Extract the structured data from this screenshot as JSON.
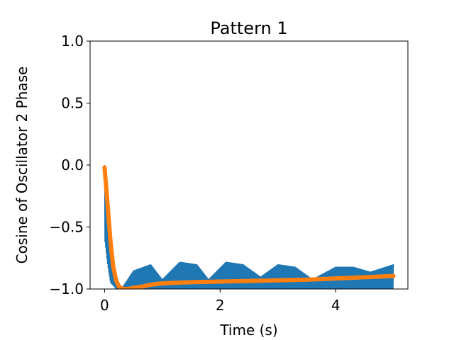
{
  "chart_data": {
    "type": "line",
    "title": "Pattern 1",
    "xlabel": "Time (s)",
    "ylabel": "Cosine of Oscillator 2 Phase",
    "xlim": [
      -0.25,
      5.25
    ],
    "ylim": [
      -1.0,
      1.0
    ],
    "xticks": [
      0,
      2,
      4
    ],
    "xtick_labels": [
      "0",
      "2",
      "4"
    ],
    "yticks": [
      -1.0,
      -0.5,
      0.0,
      0.5,
      1.0
    ],
    "ytick_labels": [
      "−1.0",
      "−0.5",
      "0.0",
      "0.5",
      "1.0"
    ],
    "grid": false,
    "legend": "none",
    "series": [
      {
        "color": "#1f77b4",
        "style": "dense oscillation",
        "envelope": {
          "x": [
            0.0,
            0.05,
            0.1,
            0.2,
            0.3,
            0.5,
            0.8,
            1.0,
            1.3,
            1.6,
            1.8,
            2.1,
            2.4,
            2.7,
            3.0,
            3.3,
            3.6,
            4.0,
            4.3,
            4.6,
            5.0
          ],
          "upper": [
            0.0,
            -0.4,
            -0.75,
            -0.95,
            -0.99,
            -0.85,
            -0.8,
            -0.92,
            -0.78,
            -0.8,
            -0.92,
            -0.78,
            -0.8,
            -0.9,
            -0.8,
            -0.82,
            -0.92,
            -0.82,
            -0.82,
            -0.86,
            -0.8
          ],
          "lower": [
            -0.6,
            -0.8,
            -0.95,
            -1.0,
            -1.0,
            -1.0,
            -1.0,
            -1.0,
            -1.0,
            -1.0,
            -1.0,
            -1.0,
            -1.0,
            -1.0,
            -1.0,
            -1.0,
            -1.0,
            -1.0,
            -1.0,
            -1.0,
            -1.0
          ]
        }
      },
      {
        "color": "#ff7f0e",
        "style": "thick smooth line",
        "x": [
          0.0,
          0.05,
          0.1,
          0.15,
          0.2,
          0.25,
          0.3,
          0.35,
          0.4,
          0.5,
          0.6,
          0.7,
          0.8,
          1.0,
          1.2,
          1.5,
          2.0,
          2.5,
          3.0,
          3.5,
          4.0,
          4.5,
          5.0
        ],
        "y": [
          -0.02,
          -0.3,
          -0.6,
          -0.82,
          -0.93,
          -0.98,
          -0.995,
          -1.0,
          -1.0,
          -0.99,
          -0.985,
          -0.975,
          -0.965,
          -0.955,
          -0.95,
          -0.945,
          -0.94,
          -0.935,
          -0.93,
          -0.925,
          -0.915,
          -0.905,
          -0.895
        ]
      }
    ]
  }
}
